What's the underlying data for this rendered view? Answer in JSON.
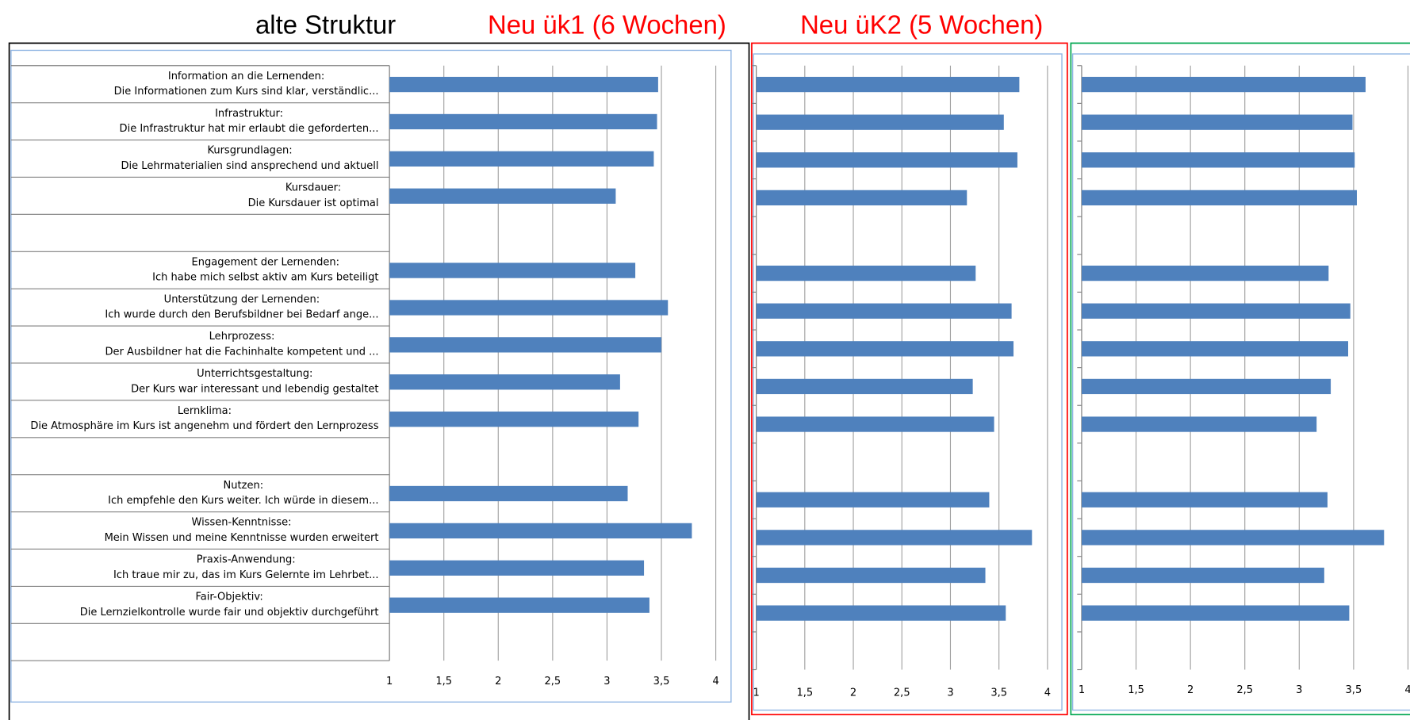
{
  "headings": [
    {
      "text": "alte Struktur",
      "color": "#000000"
    },
    {
      "text": "Neu ük1 (6 Wochen)",
      "color": "#ff0000"
    },
    {
      "text": "Neu üK2 (5 Wochen)",
      "color": "#ff0000"
    }
  ],
  "chart_data": [
    {
      "type": "bar",
      "orientation": "horizontal",
      "color": "#4f81bd",
      "frame_color": "#000000",
      "categories": [
        [
          "Information an die Lernenden:",
          "Die Informationen zum Kurs sind klar, verständlic..."
        ],
        [
          "Infrastruktur:",
          "Die Infrastruktur hat mir erlaubt die geforderten..."
        ],
        [
          "Kursgrundlagen:",
          "Die Lehrmaterialien sind ansprechend und aktuell"
        ],
        [
          "Kursdauer:",
          "Die Kursdauer ist optimal"
        ],
        null,
        [
          "Engagement  der Lernenden:",
          "Ich habe mich selbst aktiv am Kurs beteiligt"
        ],
        [
          "Unterstützung der Lernenden:",
          "Ich wurde durch den Berufsbildner bei Bedarf ange..."
        ],
        [
          "Lehrprozess:",
          "Der Ausbildner hat die Fachinhalte kompetent und ..."
        ],
        [
          "Unterrichtsgestaltung:",
          "Der Kurs war interessant und lebendig gestaltet"
        ],
        [
          "Lernklima:",
          "Die Atmosphäre im Kurs ist angenehm und fördert den Lernprozess"
        ],
        null,
        [
          "Nutzen:",
          "Ich empfehle den Kurs weiter. Ich würde in diesem..."
        ],
        [
          "Wissen-Kenntnisse:",
          "Mein Wissen und meine Kenntnisse wurden erweitert"
        ],
        [
          "Praxis-Anwendung:",
          "Ich traue mir zu, das im Kurs Gelernte im Lehrbet..."
        ],
        [
          "Fair-Objektiv:",
          "Die Lernzielkontrolle wurde fair und objektiv durchgeführt"
        ],
        null
      ],
      "values": [
        3.47,
        3.46,
        3.43,
        3.08,
        null,
        3.26,
        3.56,
        3.5,
        3.12,
        3.29,
        null,
        3.19,
        3.78,
        3.34,
        3.39,
        null
      ],
      "xlim": [
        1,
        4
      ],
      "xticks": [
        1,
        {
          "value": 1.5,
          "label": "1,5"
        },
        2,
        {
          "value": 2.5,
          "label": "2,5"
        },
        3,
        {
          "value": 3.5,
          "label": "3,5"
        },
        4
      ],
      "grid": true
    },
    {
      "type": "bar",
      "orientation": "horizontal",
      "color": "#4f81bd",
      "frame_color": "#ff0000",
      "values": [
        3.71,
        3.55,
        3.69,
        3.17,
        null,
        3.26,
        3.63,
        3.65,
        3.23,
        3.45,
        null,
        3.4,
        3.84,
        3.36,
        3.57,
        null
      ],
      "xlim": [
        1,
        4
      ],
      "xticks": [
        1,
        {
          "value": 1.5,
          "label": "1,5"
        },
        2,
        {
          "value": 2.5,
          "label": "2,5"
        },
        3,
        {
          "value": 3.5,
          "label": "3,5"
        },
        4
      ],
      "grid": true
    },
    {
      "type": "bar",
      "orientation": "horizontal",
      "color": "#4f81bd",
      "frame_color": "#00a650",
      "values": [
        3.61,
        3.49,
        3.51,
        3.53,
        null,
        3.27,
        3.47,
        3.45,
        3.29,
        3.16,
        null,
        3.26,
        3.78,
        3.23,
        3.46,
        null
      ],
      "xlim": [
        1,
        4
      ],
      "xticks": [
        1,
        {
          "value": 1.5,
          "label": "1,5"
        },
        2,
        {
          "value": 2.5,
          "label": "2,5"
        },
        3,
        {
          "value": 3.5,
          "label": "3,5"
        },
        4
      ],
      "grid": true
    }
  ]
}
